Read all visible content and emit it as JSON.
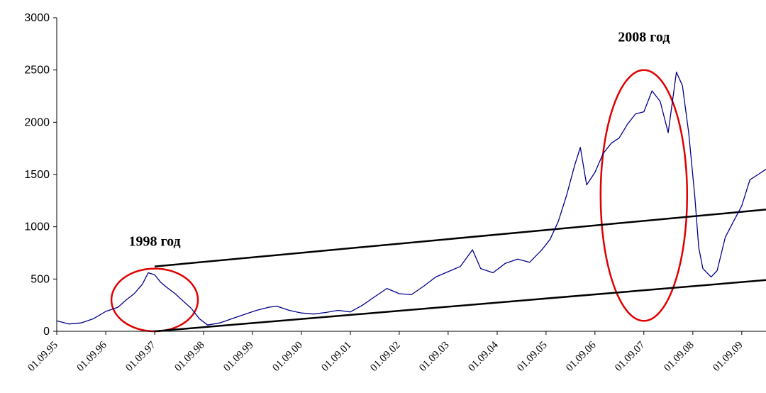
{
  "chart_data": {
    "type": "line",
    "title": "",
    "xlabel": "",
    "ylabel": "",
    "ylim": [
      0,
      3000
    ],
    "xlim": [
      "1995-09-01",
      "2010-03-01"
    ],
    "grid": false,
    "yticks": [
      "0",
      "500",
      "1000",
      "1500",
      "2000",
      "2500",
      "3000"
    ],
    "xticks": [
      {
        "label": "01.09.95",
        "date": "1995-09-01"
      },
      {
        "label": "01.09.96",
        "date": "1996-09-01"
      },
      {
        "label": "01.09.97",
        "date": "1997-09-01"
      },
      {
        "label": "01.09.98",
        "date": "1998-09-01"
      },
      {
        "label": "01.09.99",
        "date": "1999-09-01"
      },
      {
        "label": "01.09.00",
        "date": "2000-09-01"
      },
      {
        "label": "01.09.01",
        "date": "2001-09-01"
      },
      {
        "label": "01.09.02",
        "date": "2002-09-01"
      },
      {
        "label": "01.09.03",
        "date": "2003-09-01"
      },
      {
        "label": "01.09.04",
        "date": "2004-09-01"
      },
      {
        "label": "01.09.05",
        "date": "2005-09-01"
      },
      {
        "label": "01.09.06",
        "date": "2006-09-01"
      },
      {
        "label": "01.09.07",
        "date": "2007-09-01"
      },
      {
        "label": "01.09.08",
        "date": "2008-09-01"
      },
      {
        "label": "01.09.09",
        "date": "2009-09-01"
      }
    ],
    "series": [
      {
        "color": "#00008B",
        "points": [
          [
            "1995-09-01",
            100
          ],
          [
            "1995-12-01",
            70
          ],
          [
            "1996-03-01",
            80
          ],
          [
            "1996-06-01",
            120
          ],
          [
            "1996-09-01",
            190
          ],
          [
            "1996-12-01",
            230
          ],
          [
            "1997-02-01",
            300
          ],
          [
            "1997-04-01",
            360
          ],
          [
            "1997-06-01",
            450
          ],
          [
            "1997-07-15",
            560
          ],
          [
            "1997-09-01",
            540
          ],
          [
            "1997-10-15",
            470
          ],
          [
            "1997-12-01",
            420
          ],
          [
            "1998-02-01",
            360
          ],
          [
            "1998-04-01",
            290
          ],
          [
            "1998-06-01",
            220
          ],
          [
            "1998-08-01",
            120
          ],
          [
            "1998-10-01",
            60
          ],
          [
            "1999-01-01",
            80
          ],
          [
            "1999-04-01",
            120
          ],
          [
            "1999-07-01",
            160
          ],
          [
            "1999-10-01",
            200
          ],
          [
            "2000-01-01",
            230
          ],
          [
            "2000-03-01",
            240
          ],
          [
            "2000-06-01",
            200
          ],
          [
            "2000-09-01",
            175
          ],
          [
            "2000-12-01",
            165
          ],
          [
            "2001-03-01",
            180
          ],
          [
            "2001-06-01",
            200
          ],
          [
            "2001-09-01",
            185
          ],
          [
            "2001-12-01",
            250
          ],
          [
            "2002-03-01",
            330
          ],
          [
            "2002-06-01",
            410
          ],
          [
            "2002-09-01",
            360
          ],
          [
            "2002-12-01",
            350
          ],
          [
            "2003-03-01",
            430
          ],
          [
            "2003-06-01",
            520
          ],
          [
            "2003-09-01",
            570
          ],
          [
            "2003-12-01",
            620
          ],
          [
            "2004-03-01",
            780
          ],
          [
            "2004-05-01",
            600
          ],
          [
            "2004-08-01",
            560
          ],
          [
            "2004-11-01",
            650
          ],
          [
            "2005-02-01",
            690
          ],
          [
            "2005-05-01",
            660
          ],
          [
            "2005-08-01",
            780
          ],
          [
            "2005-10-01",
            880
          ],
          [
            "2005-12-01",
            1050
          ],
          [
            "2006-02-01",
            1300
          ],
          [
            "2006-04-01",
            1580
          ],
          [
            "2006-05-15",
            1760
          ],
          [
            "2006-07-01",
            1400
          ],
          [
            "2006-09-01",
            1520
          ],
          [
            "2006-11-01",
            1700
          ],
          [
            "2007-01-01",
            1800
          ],
          [
            "2007-03-01",
            1850
          ],
          [
            "2007-05-01",
            1980
          ],
          [
            "2007-07-01",
            2080
          ],
          [
            "2007-09-01",
            2100
          ],
          [
            "2007-11-01",
            2300
          ],
          [
            "2008-01-01",
            2200
          ],
          [
            "2008-03-01",
            1900
          ],
          [
            "2008-05-01",
            2480
          ],
          [
            "2008-06-15",
            2350
          ],
          [
            "2008-08-01",
            1900
          ],
          [
            "2008-09-15",
            1300
          ],
          [
            "2008-10-15",
            800
          ],
          [
            "2008-11-15",
            600
          ],
          [
            "2009-01-15",
            520
          ],
          [
            "2009-03-01",
            580
          ],
          [
            "2009-05-01",
            900
          ],
          [
            "2009-07-01",
            1050
          ],
          [
            "2009-09-01",
            1200
          ],
          [
            "2009-11-01",
            1450
          ],
          [
            "2010-01-01",
            1500
          ],
          [
            "2010-03-01",
            1550
          ]
        ]
      }
    ],
    "trendlines": [
      {
        "from": [
          "1997-09-01",
          620
        ],
        "to": [
          "2010-03-01",
          1165
        ],
        "color": "#000000"
      },
      {
        "from": [
          "1997-09-01",
          0
        ],
        "to": [
          "2010-03-01",
          490
        ],
        "color": "#000000"
      }
    ],
    "highlights": [
      {
        "center": [
          "1997-09-01",
          300
        ],
        "half_width_years": 1.3,
        "half_height_value": 300,
        "color": "#E00000",
        "label": "1998 год"
      },
      {
        "center": [
          "2007-09-01",
          1300
        ],
        "half_width_years": 1.3,
        "half_height_value": 1200,
        "color": "#E00000",
        "label": "2008 год"
      }
    ]
  }
}
